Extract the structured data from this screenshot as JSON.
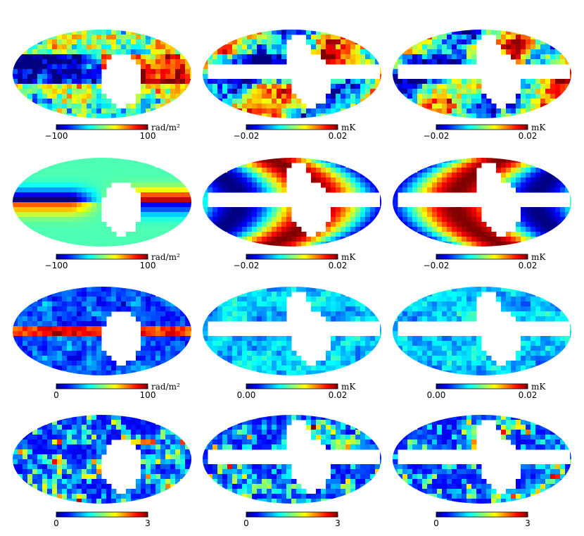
{
  "chart_data": [
    {
      "type": "map",
      "clim": [
        -100,
        100
      ],
      "ticks": [
        {
          "value": -100,
          "label": "−100"
        },
        100
      ],
      "unit": "rad/m²"
    },
    {
      "type": "map",
      "clim": [
        -0.02,
        0.02
      ],
      "ticks": [
        {
          "value": -0.02,
          "label": "−0.02"
        },
        0.02
      ],
      "unit": "mK"
    },
    {
      "type": "map",
      "clim": [
        -0.02,
        0.02
      ],
      "ticks": [
        {
          "value": -0.02,
          "label": "−0.02"
        },
        0.02
      ],
      "unit": "mK"
    },
    {
      "type": "map",
      "clim": [
        -100,
        100
      ],
      "ticks": [
        {
          "value": -100,
          "label": "−100"
        },
        100
      ],
      "unit": "rad/m²"
    },
    {
      "type": "map",
      "clim": [
        -0.02,
        0.02
      ],
      "ticks": [
        {
          "value": -0.02,
          "label": "−0.02"
        },
        0.02
      ],
      "unit": "mK"
    },
    {
      "type": "map",
      "clim": [
        -0.02,
        0.02
      ],
      "ticks": [
        {
          "value": -0.02,
          "label": "−0.02"
        },
        0.02
      ],
      "unit": "mK"
    },
    {
      "type": "map",
      "clim": [
        0,
        100
      ],
      "ticks": [
        0,
        100
      ],
      "unit": "rad/m²"
    },
    {
      "type": "map",
      "clim": [
        0,
        0.02
      ],
      "ticks": [
        {
          "value": 0,
          "label": "0.00"
        },
        0.02
      ],
      "unit": "mK"
    },
    {
      "type": "map",
      "clim": [
        0,
        0.02
      ],
      "ticks": [
        {
          "value": 0,
          "label": "0.00"
        },
        0.02
      ],
      "unit": "mK"
    },
    {
      "type": "map",
      "clim": [
        0,
        3
      ],
      "ticks": [
        0,
        3
      ]
    },
    {
      "type": "map",
      "clim": [
        0,
        3
      ],
      "ticks": [
        0,
        3
      ]
    },
    {
      "type": "map",
      "clim": [
        0,
        3
      ],
      "ticks": [
        0,
        3
      ]
    }
  ]
}
